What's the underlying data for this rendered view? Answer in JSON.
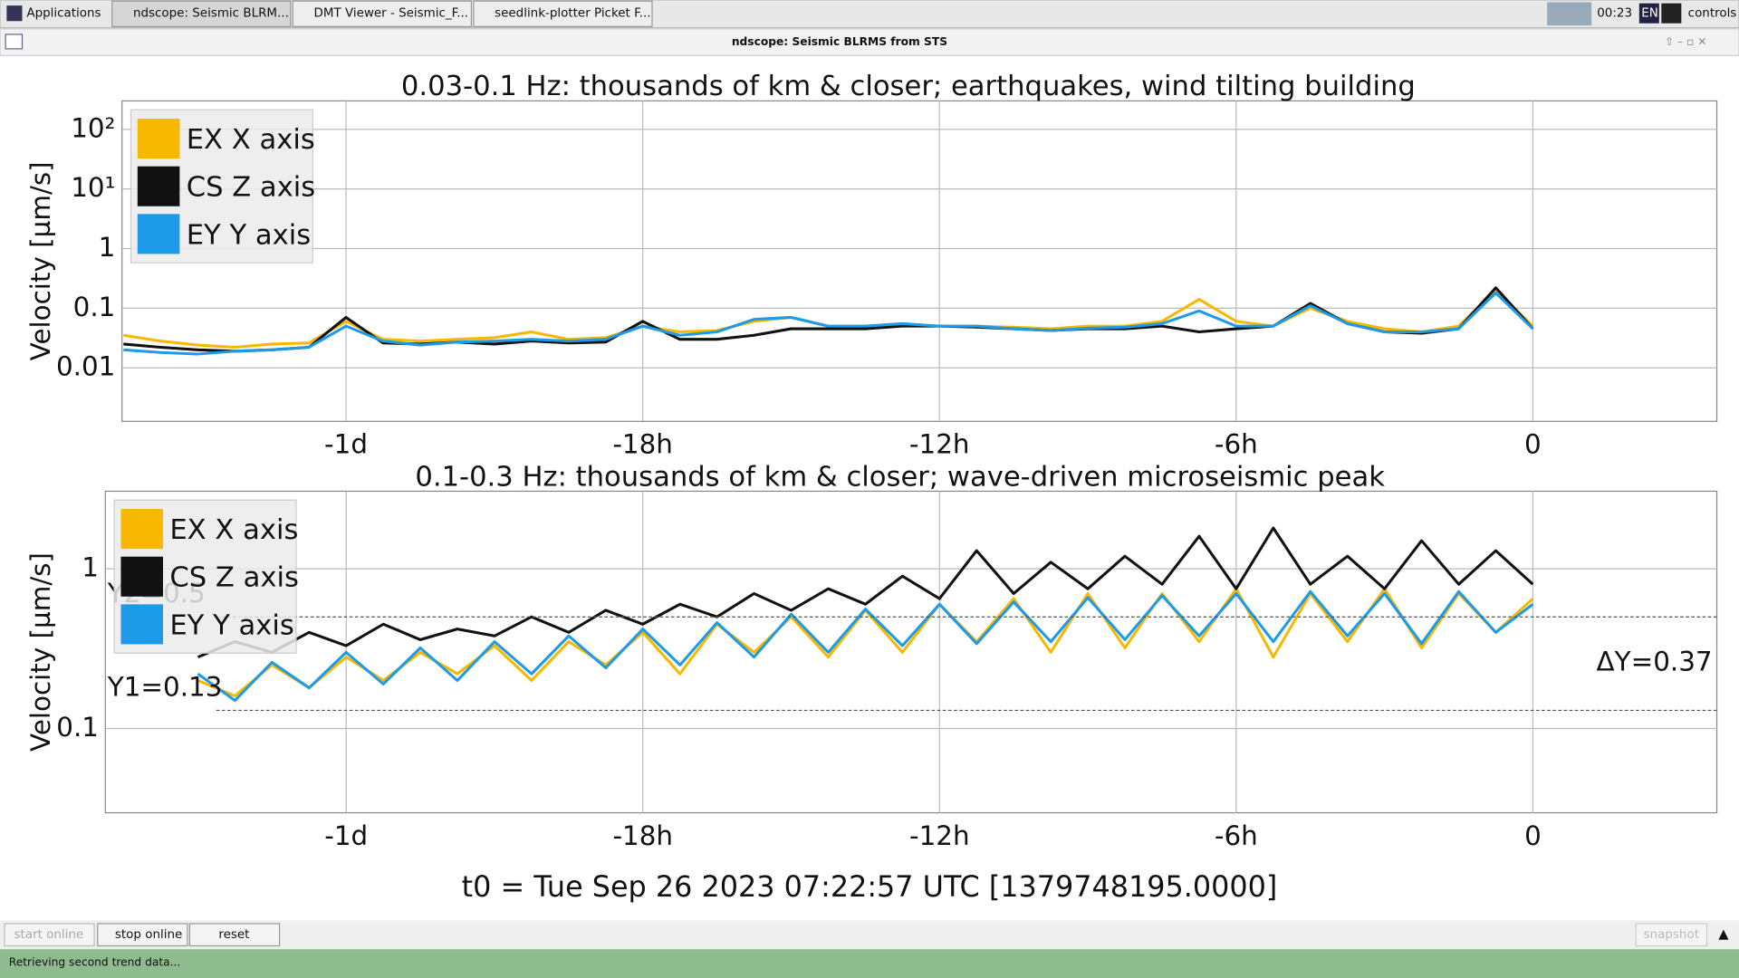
{
  "taskbar": {
    "apps": "Applications",
    "tabs": [
      "ndscope: Seismic BLRM...",
      "DMT Viewer - Seismic_F...",
      "seedlink-plotter Picket F..."
    ],
    "clock": "00:23",
    "lang": "EN",
    "user": "controls"
  },
  "window": {
    "title": "ndscope: Seismic BLRMS from STS"
  },
  "chart_data": [
    {
      "type": "line",
      "title": "0.03-0.1 Hz: thousands of km & closer; earthquakes, wind tilting building",
      "y_label": "Velocity [µm/s]",
      "log_y": true,
      "grid": true,
      "legend": "top-left",
      "xlim": [
        -28.53,
        3.72
      ],
      "xticks": [
        {
          "value": -24,
          "label": "-1d"
        },
        {
          "value": -18,
          "label": "-18h"
        },
        {
          "value": -12,
          "label": "-12h"
        },
        {
          "value": -6,
          "label": "-6h"
        },
        0
      ],
      "ylim": [
        0.00126,
        300
      ],
      "yticks": [
        {
          "value": 100,
          "label": "10²"
        },
        {
          "value": 10,
          "label": "10¹"
        },
        1,
        0.1,
        0.01
      ],
      "x": [
        -28.5,
        -27.75,
        -27,
        -26.25,
        -25.5,
        -24.75,
        -24,
        -23.25,
        -22.5,
        -21.75,
        -21,
        -20.25,
        -19.5,
        -18.75,
        -18,
        -17.25,
        -16.5,
        -15.75,
        -15,
        -14.25,
        -13.5,
        -12.75,
        -12,
        -11.25,
        -10.5,
        -9.75,
        -9,
        -8.25,
        -7.5,
        -6.75,
        -6,
        -5.25,
        -4.5,
        -3.75,
        -3,
        -2.25,
        -1.5,
        -0.75,
        0
      ],
      "series": [
        {
          "name": "EX X axis",
          "color": "#f8b800",
          "values": [
            0.035,
            0.028,
            0.024,
            0.022,
            0.025,
            0.026,
            0.06,
            0.03,
            0.028,
            0.03,
            0.032,
            0.04,
            0.03,
            0.032,
            0.05,
            0.04,
            0.042,
            0.06,
            0.07,
            0.05,
            0.05,
            0.055,
            0.05,
            0.05,
            0.048,
            0.045,
            0.05,
            0.05,
            0.06,
            0.14,
            0.06,
            0.05,
            0.1,
            0.06,
            0.045,
            0.04,
            0.05,
            0.2,
            0.05
          ]
        },
        {
          "name": "CS Z axis",
          "color": "#111111",
          "values": [
            0.025,
            0.022,
            0.02,
            0.019,
            0.02,
            0.022,
            0.07,
            0.026,
            0.025,
            0.027,
            0.025,
            0.028,
            0.026,
            0.027,
            0.06,
            0.03,
            0.03,
            0.035,
            0.045,
            0.045,
            0.045,
            0.05,
            0.05,
            0.048,
            0.045,
            0.042,
            0.045,
            0.045,
            0.05,
            0.04,
            0.045,
            0.05,
            0.12,
            0.055,
            0.04,
            0.038,
            0.045,
            0.22,
            0.045
          ]
        },
        {
          "name": "EY Y axis",
          "color": "#1e9be8",
          "values": [
            0.02,
            0.018,
            0.017,
            0.019,
            0.02,
            0.022,
            0.05,
            0.028,
            0.024,
            0.027,
            0.028,
            0.03,
            0.028,
            0.03,
            0.05,
            0.035,
            0.04,
            0.065,
            0.07,
            0.05,
            0.05,
            0.055,
            0.05,
            0.05,
            0.045,
            0.042,
            0.046,
            0.048,
            0.055,
            0.09,
            0.05,
            0.05,
            0.11,
            0.055,
            0.04,
            0.04,
            0.045,
            0.18,
            0.045
          ]
        }
      ]
    },
    {
      "type": "line",
      "title": "0.1-0.3 Hz: thousands of km & closer; wave-driven microseismic peak",
      "y_label": "Velocity [µm/s]",
      "log_y": true,
      "grid": true,
      "legend": "top-left",
      "xlim": [
        -28.87,
        3.72
      ],
      "xticks": [
        {
          "value": -24,
          "label": "-1d"
        },
        {
          "value": -18,
          "label": "-18h"
        },
        {
          "value": -12,
          "label": "-12h"
        },
        {
          "value": -6,
          "label": "-6h"
        },
        0
      ],
      "ylim": [
        0.0297,
        3.06
      ],
      "yticks": [
        1,
        0.1
      ],
      "x": [
        -27,
        -26.25,
        -25.5,
        -24.75,
        -24,
        -23.25,
        -22.5,
        -21.75,
        -21,
        -20.25,
        -19.5,
        -18.75,
        -18,
        -17.25,
        -16.5,
        -15.75,
        -15,
        -14.25,
        -13.5,
        -12.75,
        -12,
        -11.25,
        -10.5,
        -9.75,
        -9,
        -8.25,
        -7.5,
        -6.75,
        -6,
        -5.25,
        -4.5,
        -3.75,
        -3,
        -2.25,
        -1.5,
        -0.75,
        0
      ],
      "series": [
        {
          "name": "EX X axis",
          "color": "#f8b800",
          "values": [
            0.2,
            0.16,
            0.25,
            0.18,
            0.28,
            0.2,
            0.3,
            0.22,
            0.33,
            0.2,
            0.35,
            0.25,
            0.4,
            0.22,
            0.45,
            0.3,
            0.5,
            0.28,
            0.55,
            0.3,
            0.6,
            0.35,
            0.65,
            0.3,
            0.7,
            0.32,
            0.7,
            0.35,
            0.75,
            0.28,
            0.7,
            0.35,
            0.75,
            0.32,
            0.7,
            0.4,
            0.65
          ]
        },
        {
          "name": "CS Z axis",
          "color": "#111111",
          "values": [
            0.28,
            0.35,
            0.3,
            0.4,
            0.33,
            0.45,
            0.36,
            0.42,
            0.38,
            0.5,
            0.4,
            0.55,
            0.45,
            0.6,
            0.5,
            0.7,
            0.55,
            0.75,
            0.6,
            0.9,
            0.65,
            1.3,
            0.7,
            1.1,
            0.75,
            1.2,
            0.8,
            1.6,
            0.75,
            1.8,
            0.8,
            1.2,
            0.75,
            1.5,
            0.8,
            1.3,
            0.8
          ]
        },
        {
          "name": "EY Y axis",
          "color": "#1e9be8",
          "values": [
            0.22,
            0.15,
            0.26,
            0.18,
            0.3,
            0.19,
            0.32,
            0.2,
            0.35,
            0.22,
            0.38,
            0.24,
            0.42,
            0.25,
            0.46,
            0.28,
            0.52,
            0.3,
            0.56,
            0.33,
            0.6,
            0.34,
            0.62,
            0.35,
            0.66,
            0.36,
            0.68,
            0.38,
            0.7,
            0.35,
            0.72,
            0.38,
            0.7,
            0.34,
            0.72,
            0.4,
            0.6
          ]
        }
      ],
      "cursors": [
        {
          "value": 0.13,
          "label": "Y1=0.13"
        },
        {
          "value": 0.5,
          "label": "Y2=0.5"
        }
      ],
      "delta_label": "ΔY=0.37"
    }
  ],
  "t0": "t0 = Tue Sep 26 2023 07:22:57 UTC [1379748195.0000]",
  "controls": [
    "start online",
    "stop online",
    "reset",
    "snapshot"
  ],
  "status": "Retrieving second trend data..."
}
